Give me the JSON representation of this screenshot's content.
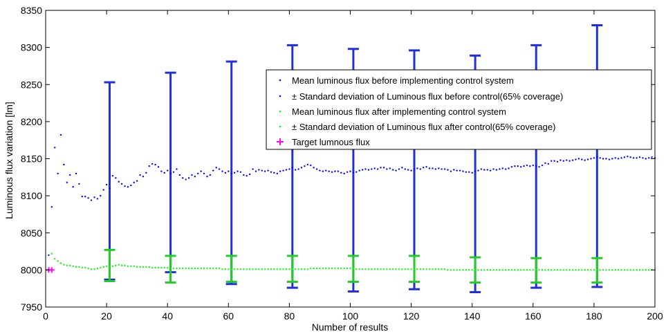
{
  "chart_data": {
    "type": "scatter",
    "title": "",
    "xlabel": "Number of results",
    "ylabel": "Luminous flux variation [lm]",
    "xlim": [
      0,
      200
    ],
    "ylim": [
      7950,
      8350
    ],
    "xticks": [
      0,
      20,
      40,
      60,
      80,
      100,
      120,
      140,
      160,
      180,
      200
    ],
    "yticks": [
      7950,
      8000,
      8050,
      8100,
      8150,
      8200,
      8250,
      8300,
      8350
    ],
    "grid": false,
    "legend_position": "upper-right",
    "legend": [
      "Mean luminous flux before implementing control system",
      "± Standard deviation of Luminous flux before control(65% coverage)",
      "Mean luminous flux after implementing control system",
      "± Standard deviation of Luminous flux after control(65% coverage)",
      "Target lumnous flux"
    ],
    "colors": {
      "before": "#0000ff",
      "after": "#00ff00",
      "target": "#ff00ff",
      "errorbar_before": "#1f2ee0",
      "errorbar_after": "#22cc22"
    },
    "series_before_mean": {
      "x": [
        1,
        2,
        3,
        4,
        5,
        6,
        7,
        8,
        9,
        10,
        11,
        12,
        13,
        14,
        15,
        16,
        17,
        18,
        19,
        20,
        21,
        22,
        23,
        24,
        25,
        26,
        27,
        28,
        29,
        30,
        31,
        32,
        33,
        34,
        35,
        36,
        37,
        38,
        39,
        40,
        41,
        42,
        43,
        44,
        45,
        46,
        47,
        48,
        49,
        50,
        51,
        52,
        53,
        54,
        55,
        56,
        57,
        58,
        59,
        60,
        61,
        62,
        63,
        64,
        65,
        66,
        67,
        68,
        69,
        70,
        71,
        72,
        73,
        74,
        75,
        76,
        77,
        78,
        79,
        80,
        81,
        82,
        83,
        84,
        85,
        86,
        87,
        88,
        89,
        90,
        91,
        92,
        93,
        94,
        95,
        96,
        97,
        98,
        99,
        100,
        101,
        102,
        103,
        104,
        105,
        106,
        107,
        108,
        109,
        110,
        111,
        112,
        113,
        114,
        115,
        116,
        117,
        118,
        119,
        120,
        121,
        122,
        123,
        124,
        125,
        126,
        127,
        128,
        129,
        130,
        131,
        132,
        133,
        134,
        135,
        136,
        137,
        138,
        139,
        140,
        141,
        142,
        143,
        144,
        145,
        146,
        147,
        148,
        149,
        150,
        151,
        152,
        153,
        154,
        155,
        156,
        157,
        158,
        159,
        160,
        161,
        162,
        163,
        164,
        165,
        166,
        167,
        168,
        169,
        170,
        171,
        172,
        173,
        174,
        175,
        176,
        177,
        178,
        179,
        180,
        181,
        182,
        183,
        184,
        185,
        186,
        187,
        188,
        189,
        190,
        191,
        192,
        193,
        194,
        195,
        196,
        197,
        198,
        199,
        200
      ],
      "y": [
        8020,
        8085,
        8165,
        8130,
        8182,
        8142,
        8118,
        8128,
        8112,
        8130,
        8116,
        8099,
        8099,
        8097,
        8094,
        8098,
        8096,
        8100,
        8108,
        8115,
        8110,
        8127,
        8124,
        8119,
        8116,
        8113,
        8112,
        8114,
        8118,
        8120,
        8128,
        8126,
        8131,
        8140,
        8143,
        8142,
        8139,
        8133,
        8131,
        8134,
        8130,
        8132,
        8136,
        8128,
        8124,
        8122,
        8124,
        8128,
        8126,
        8130,
        8133,
        8130,
        8126,
        8128,
        8134,
        8138,
        8136,
        8133,
        8131,
        8133,
        8130,
        8131,
        8133,
        8132,
        8128,
        8127,
        8129,
        8136,
        8133,
        8135,
        8134,
        8133,
        8134,
        8132,
        8131,
        8130,
        8133,
        8134,
        8135,
        8136,
        8138,
        8135,
        8136,
        8138,
        8140,
        8142,
        8141,
        8138,
        8136,
        8134,
        8133,
        8134,
        8133,
        8132,
        8133,
        8133,
        8131,
        8130,
        8132,
        8133,
        8131,
        8132,
        8134,
        8135,
        8136,
        8135,
        8136,
        8137,
        8136,
        8138,
        8138,
        8136,
        8137,
        8135,
        8134,
        8136,
        8138,
        8136,
        8135,
        8134,
        8136,
        8137,
        8136,
        8138,
        8139,
        8137,
        8137,
        8136,
        8137,
        8136,
        8136,
        8135,
        8133,
        8135,
        8134,
        8134,
        8133,
        8132,
        8132,
        8131,
        8133,
        8134,
        8136,
        8135,
        8135,
        8134,
        8136,
        8135,
        8136,
        8137,
        8136,
        8137,
        8139,
        8140,
        8140,
        8139,
        8140,
        8141,
        8140,
        8141,
        8140,
        8139,
        8141,
        8144,
        8143,
        8147,
        8147,
        8146,
        8148,
        8147,
        8148,
        8147,
        8148,
        8149,
        8150,
        8149,
        8148,
        8149,
        8150,
        8151,
        8152,
        8151,
        8150,
        8150,
        8149,
        8150,
        8151,
        8150,
        8151,
        8152,
        8153,
        8152,
        8151,
        8151,
        8152,
        8151,
        8150,
        8151,
        8152,
        8151
      ]
    },
    "series_after_mean": {
      "x": [
        1,
        2,
        3,
        4,
        5,
        6,
        7,
        8,
        9,
        10,
        11,
        12,
        13,
        14,
        15,
        16,
        17,
        18,
        19,
        20,
        21,
        22,
        23,
        24,
        25,
        26,
        27,
        28,
        29,
        30,
        31,
        32,
        33,
        34,
        35,
        36,
        37,
        38,
        39,
        40,
        41,
        42,
        43,
        44,
        45,
        46,
        47,
        48,
        49,
        50,
        51,
        52,
        53,
        54,
        55,
        56,
        57,
        58,
        59,
        60,
        61,
        62,
        63,
        64,
        65,
        66,
        67,
        68,
        69,
        70,
        71,
        72,
        73,
        74,
        75,
        76,
        77,
        78,
        79,
        80,
        81,
        82,
        83,
        84,
        85,
        86,
        87,
        88,
        89,
        90,
        91,
        92,
        93,
        94,
        95,
        96,
        97,
        98,
        99,
        100,
        101,
        102,
        103,
        104,
        105,
        106,
        107,
        108,
        109,
        110,
        111,
        112,
        113,
        114,
        115,
        116,
        117,
        118,
        119,
        120,
        121,
        122,
        123,
        124,
        125,
        126,
        127,
        128,
        129,
        130,
        131,
        132,
        133,
        134,
        135,
        136,
        137,
        138,
        139,
        140,
        141,
        142,
        143,
        144,
        145,
        146,
        147,
        148,
        149,
        150,
        151,
        152,
        153,
        154,
        155,
        156,
        157,
        158,
        159,
        160,
        161,
        162,
        163,
        164,
        165,
        166,
        167,
        168,
        169,
        170,
        171,
        172,
        173,
        174,
        175,
        176,
        177,
        178,
        179,
        180,
        181,
        182,
        183,
        184,
        185,
        186,
        187,
        188,
        189,
        190,
        191,
        192,
        193,
        194,
        195,
        196,
        197,
        198,
        199,
        200
      ],
      "y": [
        8000,
        8022,
        8015,
        8012,
        8009,
        8007,
        8006,
        8006,
        8005,
        8004,
        8004,
        8003,
        8003,
        8002,
        8001,
        8001,
        8002,
        8003,
        8004,
        8005,
        8005,
        8005,
        8006,
        8007,
        8006,
        8006,
        8005,
        8005,
        8005,
        8004,
        8004,
        8004,
        8004,
        8004,
        8003,
        8003,
        8003,
        8003,
        8003,
        8003,
        8002,
        8002,
        8002,
        8002,
        8002,
        8002,
        8002,
        8002,
        8002,
        8002,
        8002,
        8002,
        8002,
        8002,
        8002,
        8002,
        8002,
        8001,
        8001,
        8001,
        8001,
        8001,
        8001,
        8001,
        8001,
        8001,
        8001,
        8001,
        8001,
        8001,
        8001,
        8001,
        8001,
        8001,
        8001,
        8001,
        8001,
        8001,
        8001,
        8001,
        8001,
        8001,
        8001,
        8001,
        8001,
        8001,
        8002,
        8002,
        8002,
        8002,
        8002,
        8002,
        8002,
        8002,
        8002,
        8002,
        8002,
        8002,
        8002,
        8002,
        8002,
        8001,
        8001,
        8001,
        8001,
        8001,
        8001,
        8001,
        8001,
        8001,
        8001,
        8001,
        8001,
        8001,
        8001,
        8001,
        8001,
        8001,
        8001,
        8001,
        8001,
        8001,
        8001,
        8001,
        8001,
        8001,
        8001,
        8001,
        8001,
        8001,
        8001,
        8000,
        8000,
        8000,
        8000,
        8000,
        8000,
        8000,
        8000,
        8000,
        8000,
        8000,
        8000,
        8000,
        8000,
        8000,
        8000,
        8000,
        8000,
        8000,
        8000,
        8000,
        8000,
        8000,
        8000,
        8000,
        8000,
        8000,
        8000,
        8000,
        8000,
        8000,
        8000,
        8000,
        8000,
        8000,
        8000,
        8000,
        8000,
        8000,
        8000,
        8000,
        8000,
        8000,
        8000,
        8000,
        8000,
        8000,
        8000,
        8000,
        8000,
        8000,
        8000,
        8000,
        8000,
        8000,
        8000,
        8000,
        8000,
        8000,
        8000,
        8000,
        8000,
        8000,
        8000,
        8000,
        8000,
        8000,
        8000,
        8000
      ]
    },
    "errorbars_before": [
      {
        "x": 21,
        "low": 7987,
        "high": 8253
      },
      {
        "x": 41,
        "low": 7997,
        "high": 8266
      },
      {
        "x": 61,
        "low": 7981,
        "high": 8281
      },
      {
        "x": 81,
        "low": 7976,
        "high": 8303
      },
      {
        "x": 101,
        "low": 7971,
        "high": 8298
      },
      {
        "x": 121,
        "low": 7974,
        "high": 8296
      },
      {
        "x": 141,
        "low": 7970,
        "high": 8289
      },
      {
        "x": 161,
        "low": 7976,
        "high": 8303
      },
      {
        "x": 181,
        "low": 7977,
        "high": 8330
      }
    ],
    "errorbars_after": [
      {
        "x": 21,
        "low": 7985,
        "high": 8027
      },
      {
        "x": 41,
        "low": 7983,
        "high": 8019
      },
      {
        "x": 61,
        "low": 7984,
        "high": 8019
      },
      {
        "x": 81,
        "low": 7984,
        "high": 8019
      },
      {
        "x": 101,
        "low": 7984,
        "high": 8019
      },
      {
        "x": 121,
        "low": 7984,
        "high": 8019
      },
      {
        "x": 141,
        "low": 7983,
        "high": 8017
      },
      {
        "x": 161,
        "low": 7983,
        "high": 8016
      },
      {
        "x": 181,
        "low": 7983,
        "high": 8016
      }
    ],
    "target": {
      "x": [
        1,
        2
      ],
      "y": [
        8000,
        8000
      ]
    }
  }
}
